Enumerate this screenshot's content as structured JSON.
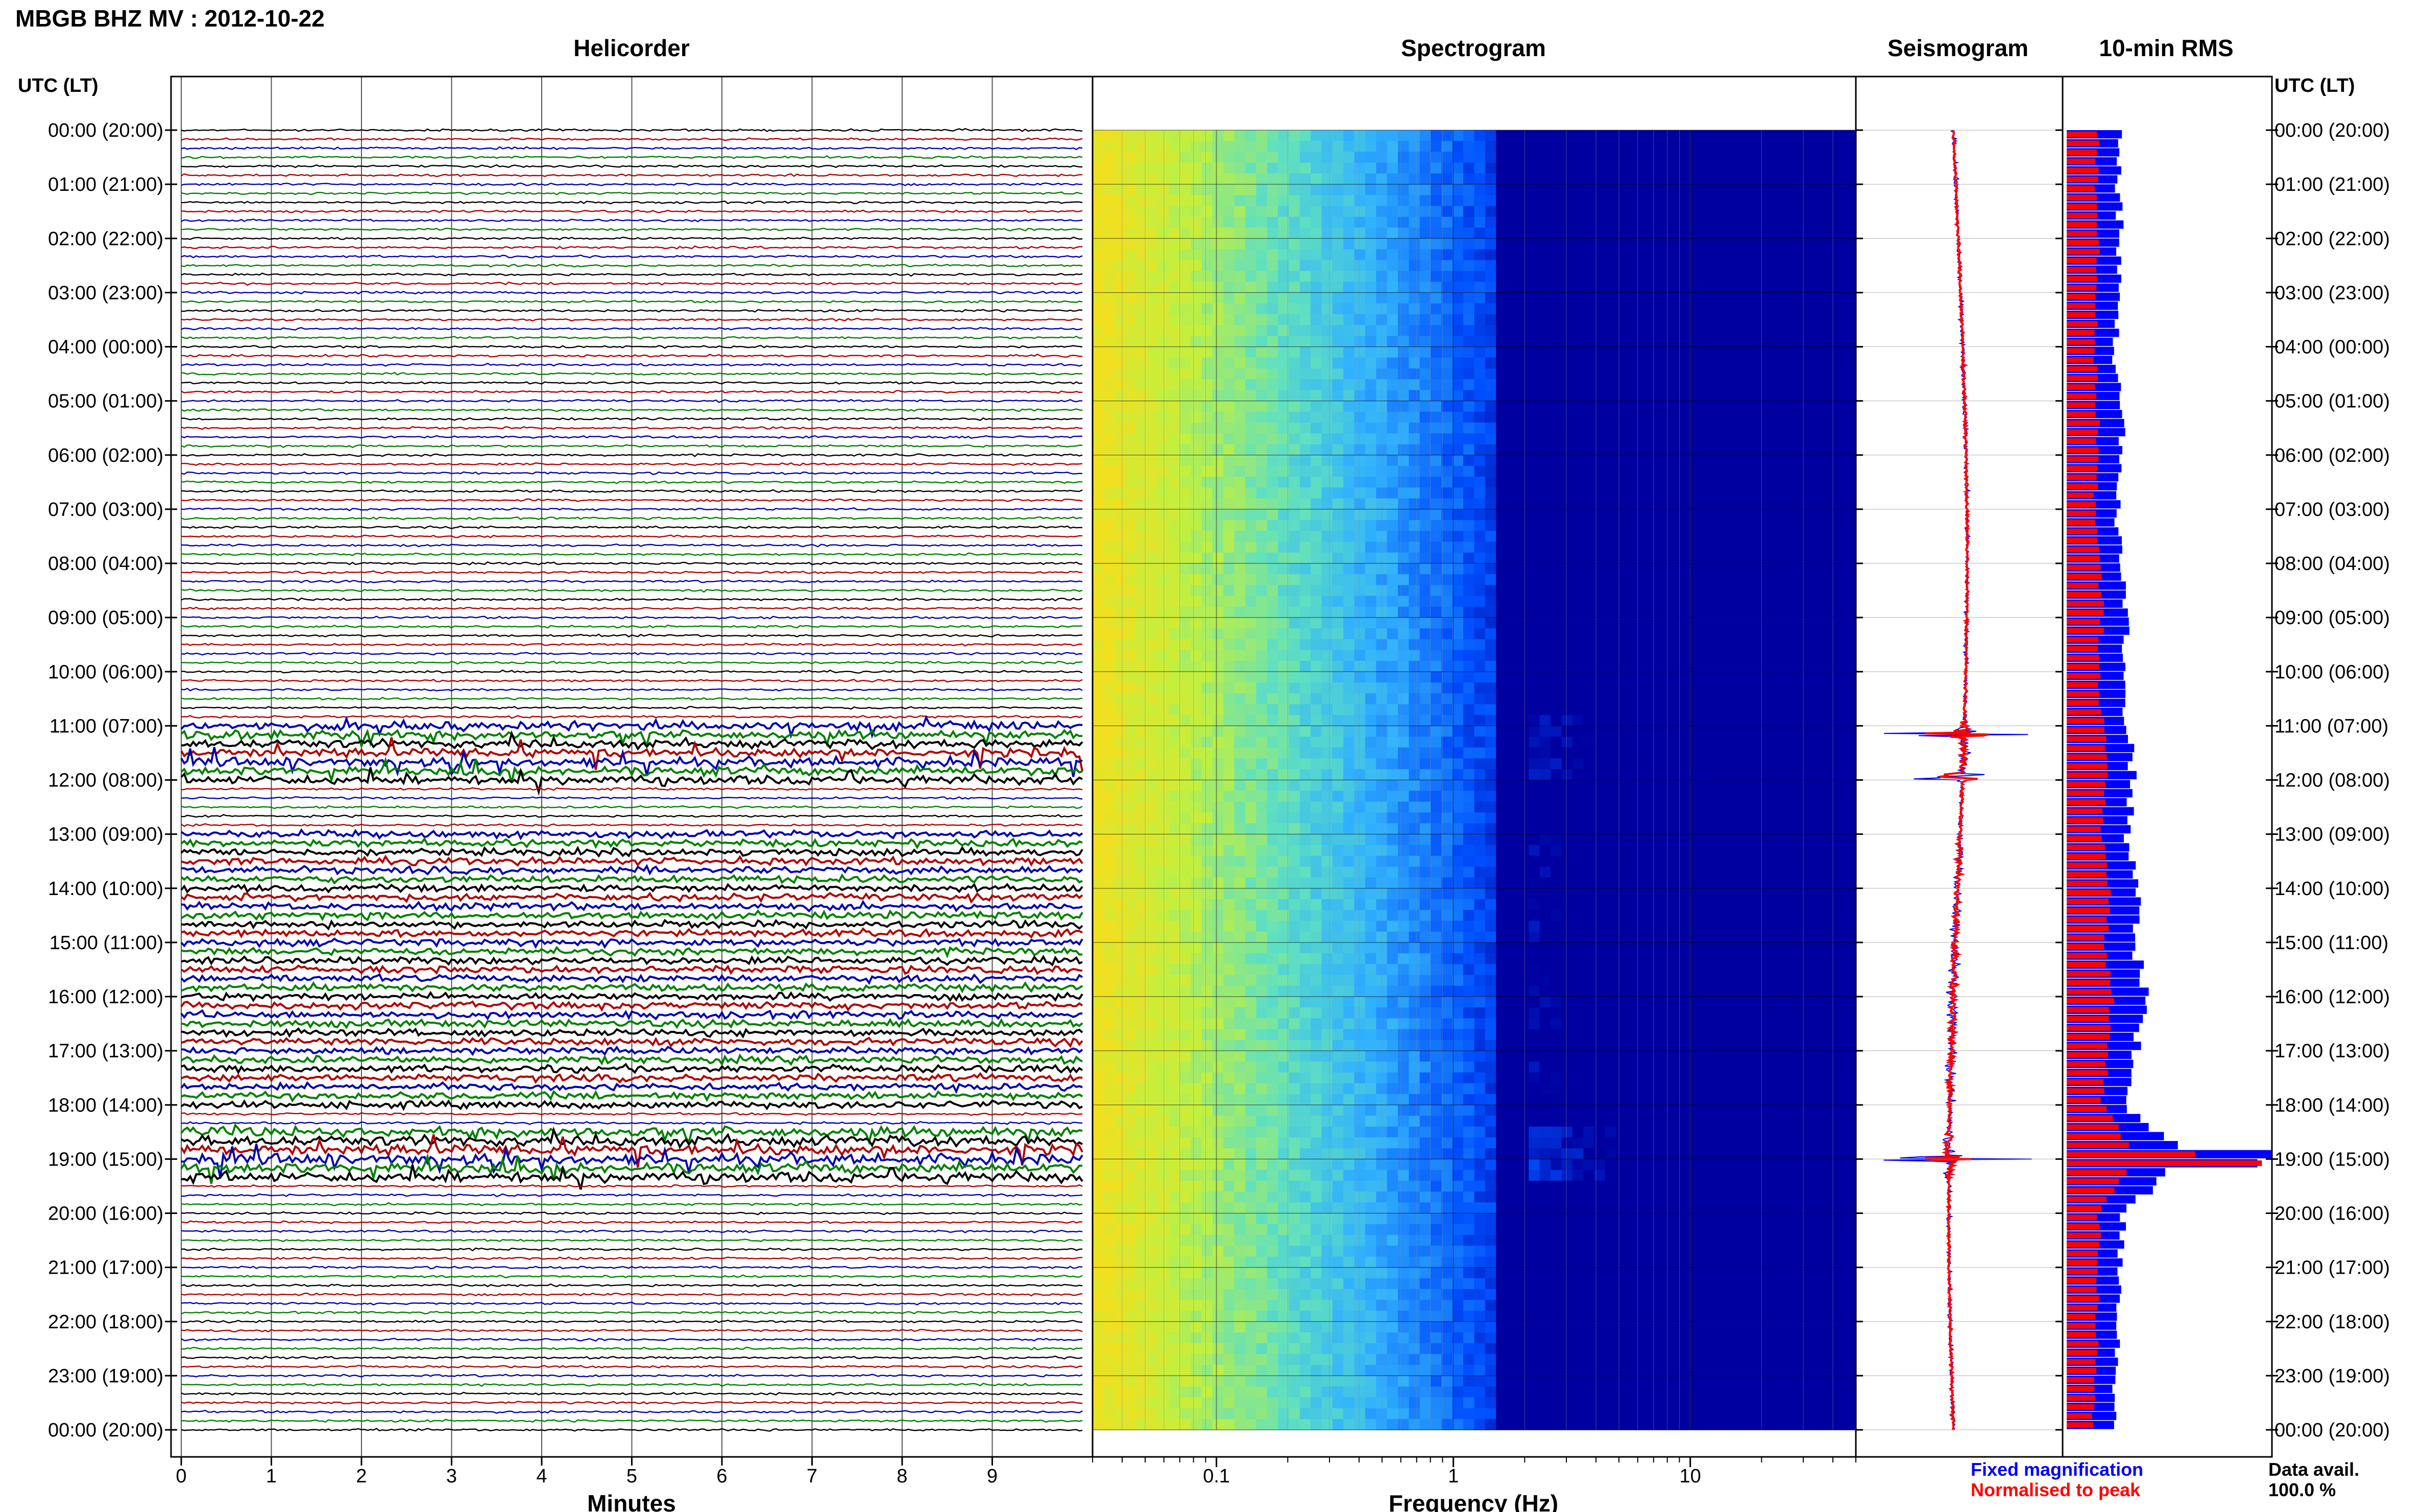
{
  "header": {
    "title": "MBGB BHZ MV : 2012-10-22"
  },
  "panels": {
    "helicorder": "Helicorder",
    "spectrogram": "Spectrogram",
    "seismogram": "Seismogram",
    "rms": "10-min RMS"
  },
  "time_axis": {
    "header_left": "UTC (LT)",
    "header_right": "UTC (LT)",
    "labels": [
      "00:00 (20:00)",
      "01:00 (21:00)",
      "02:00 (22:00)",
      "03:00 (23:00)",
      "04:00 (00:00)",
      "05:00 (01:00)",
      "06:00 (02:00)",
      "07:00 (03:00)",
      "08:00 (04:00)",
      "09:00 (05:00)",
      "10:00 (06:00)",
      "11:00 (07:00)",
      "12:00 (08:00)",
      "13:00 (09:00)",
      "14:00 (10:00)",
      "15:00 (11:00)",
      "16:00 (12:00)",
      "17:00 (13:00)",
      "18:00 (14:00)",
      "19:00 (15:00)",
      "20:00 (16:00)",
      "21:00 (17:00)",
      "22:00 (18:00)",
      "23:00 (19:00)",
      "00:00 (20:00)"
    ]
  },
  "legend": {
    "fixed": "Fixed magnification",
    "normalised": "Normalised to peak",
    "fixed_color": "#0000ff",
    "normalised_color": "#ff0000"
  },
  "availability": {
    "label": "Data avail.",
    "value": "100.0 %"
  },
  "chart_data": [
    {
      "type": "line",
      "panel": "helicorder",
      "xlabel": "Minutes",
      "x_ticks": [
        "0",
        "1",
        "2",
        "3",
        "4",
        "5",
        "6",
        "7",
        "8",
        "9"
      ],
      "xlim": [
        0,
        10
      ],
      "traces_per_hour": 6,
      "trace_colors": [
        "#000000",
        "#b00000",
        "#0000b0",
        "#008000"
      ],
      "activity_windows_utc_hours": [
        {
          "start": 10.9,
          "end": 12.0,
          "level": 0.7
        },
        {
          "start": 13.0,
          "end": 18.0,
          "level": 0.55
        },
        {
          "start": 18.5,
          "end": 19.35,
          "level": 0.9
        }
      ]
    },
    {
      "type": "heatmap",
      "panel": "spectrogram",
      "xlabel": "Frequency (Hz)",
      "x_scale": "log",
      "x_ticks": [
        "0.1",
        "1",
        "10"
      ],
      "xlim": [
        0.03,
        50
      ],
      "colormap": [
        "#0000a0",
        "#0050ff",
        "#30b0ff",
        "#60e0c0",
        "#c0f040",
        "#f0e020"
      ]
    },
    {
      "type": "line",
      "panel": "seismogram",
      "series": [
        {
          "name": "Fixed magnification",
          "color": "#0000ff"
        },
        {
          "name": "Normalised to peak",
          "color": "#ff0000"
        }
      ],
      "event_hours_utc": [
        11.15,
        11.95,
        19.0
      ]
    },
    {
      "type": "bar",
      "panel": "rms",
      "orientation": "horizontal",
      "bins_per_hour": 6,
      "series": [
        {
          "name": "Fixed magnification",
          "color": "#0000ff",
          "hourly_level": [
            0.28,
            0.26,
            0.27,
            0.26,
            0.24,
            0.26,
            0.28,
            0.25,
            0.27,
            0.3,
            0.28,
            0.3,
            0.34,
            0.3,
            0.36,
            0.33,
            0.4,
            0.34,
            0.3,
            0.58,
            0.28,
            0.27,
            0.26,
            0.25,
            0.23
          ],
          "peaks": [
            {
              "hour": 18.75,
              "level": 0.52
            },
            {
              "hour": 18.95,
              "level": 1.0
            },
            {
              "hour": 19.15,
              "level": 1.0
            }
          ]
        },
        {
          "name": "Normalised to peak",
          "color": "#ff0000",
          "hourly_level": [
            0.16,
            0.15,
            0.16,
            0.15,
            0.14,
            0.15,
            0.16,
            0.14,
            0.16,
            0.18,
            0.16,
            0.18,
            0.2,
            0.18,
            0.21,
            0.19,
            0.23,
            0.2,
            0.18,
            0.36,
            0.16,
            0.16,
            0.15,
            0.15,
            0.13
          ],
          "peaks": [
            {
              "hour": 18.95,
              "level": 0.6
            },
            {
              "hour": 19.15,
              "level": 1.0
            }
          ]
        }
      ]
    }
  ]
}
